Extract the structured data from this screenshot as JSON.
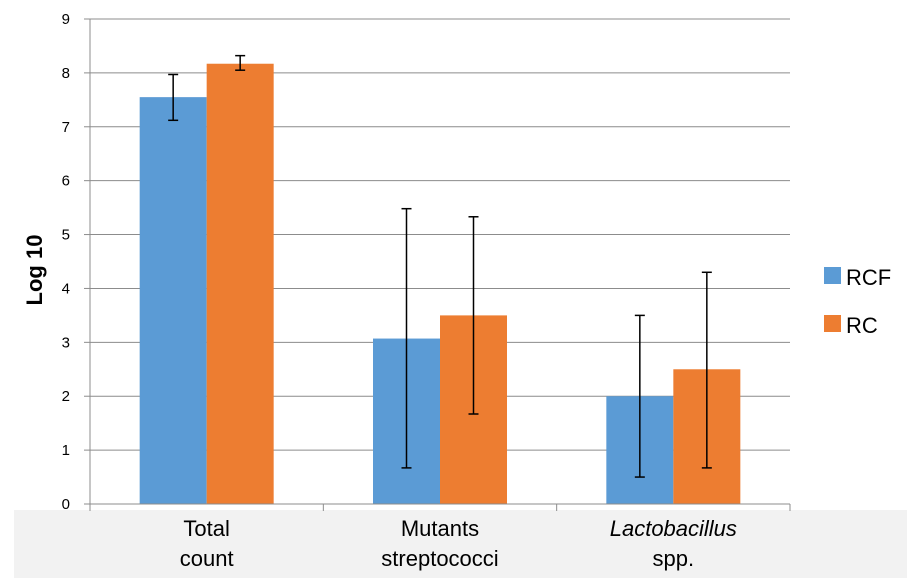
{
  "chart_data": {
    "type": "bar",
    "title": "",
    "xlabel": "",
    "ylabel": "Log 10",
    "ylim": [
      0,
      9
    ],
    "yticks": [
      "0",
      "1",
      "2",
      "3",
      "4",
      "5",
      "6",
      "7",
      "8",
      "9"
    ],
    "grid": true,
    "legend_position": "right",
    "categories": [
      {
        "lines": [
          "Total",
          "count"
        ],
        "italic_first": false
      },
      {
        "lines": [
          "Mutants",
          "streptococci"
        ],
        "italic_first": false
      },
      {
        "lines": [
          "Lactobacillus",
          "spp."
        ],
        "italic_first": true
      }
    ],
    "series": [
      {
        "name": "RCF",
        "color": "#5b9bd5",
        "values": [
          7.55,
          3.07,
          2.0
        ],
        "err_low": [
          7.12,
          0.67,
          0.5
        ],
        "err_high": [
          7.97,
          5.48,
          3.5
        ]
      },
      {
        "name": "RC",
        "color": "#ed7d31",
        "values": [
          8.17,
          3.5,
          2.5
        ],
        "err_low": [
          8.05,
          1.67,
          0.67
        ],
        "err_high": [
          8.32,
          5.33,
          4.3
        ]
      }
    ]
  }
}
